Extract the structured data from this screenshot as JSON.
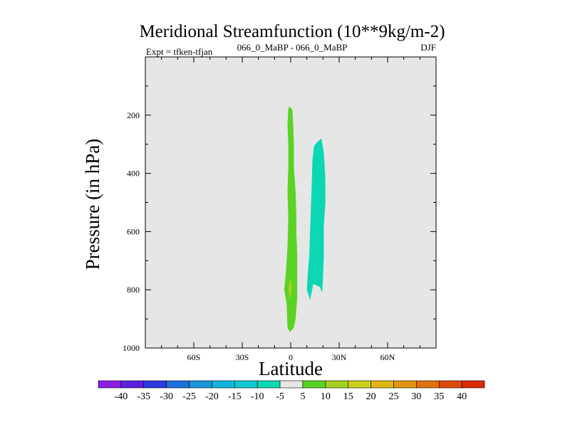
{
  "chart_data": {
    "type": "contour",
    "title": "Meridional Streamfunction (10**9kg/m-2)",
    "subtitle_left": "Expt = tfken-tfjan",
    "subtitle_center": "066_0_MaBP - 066_0_MaBP",
    "subtitle_right": "DJF",
    "xlabel": "Latitude",
    "ylabel": "Pressure (in hPa)",
    "xlim": [
      -90,
      90
    ],
    "ylim": [
      1000,
      0
    ],
    "x_ticks": [
      -60,
      -30,
      0,
      30,
      60
    ],
    "x_tick_labels": [
      "60S",
      "30S",
      "0",
      "30N",
      "60N"
    ],
    "y_ticks": [
      200,
      400,
      600,
      800,
      1000
    ],
    "y_tick_labels": [
      "200",
      "400",
      "600",
      "800",
      "1000"
    ],
    "background_color": "#e6e6e6",
    "regions": [
      {
        "name": "positive cell",
        "range": [
          5,
          10
        ],
        "color": "#5bd325",
        "polygon": [
          [
            -1,
            170
          ],
          [
            1,
            180
          ],
          [
            1.5,
            230
          ],
          [
            2,
            300
          ],
          [
            2,
            380
          ],
          [
            3,
            460
          ],
          [
            3.5,
            540
          ],
          [
            3.5,
            600
          ],
          [
            4,
            680
          ],
          [
            4,
            760
          ],
          [
            4,
            830
          ],
          [
            3,
            900
          ],
          [
            2,
            930
          ],
          [
            -0.5,
            945
          ],
          [
            -2,
            930
          ],
          [
            -2.5,
            850
          ],
          [
            -4,
            800
          ],
          [
            -3,
            740
          ],
          [
            -2,
            650
          ],
          [
            -1.5,
            560
          ],
          [
            -2,
            460
          ],
          [
            -1.5,
            380
          ],
          [
            -1.5,
            300
          ],
          [
            -2,
            230
          ],
          [
            -1.5,
            180
          ]
        ]
      },
      {
        "name": "positive cell core",
        "range": [
          10,
          15
        ],
        "color": "#a6d21f",
        "polygon": [
          [
            -0.5,
            760
          ],
          [
            0.5,
            780
          ],
          [
            0.5,
            820
          ],
          [
            -0.5,
            830
          ],
          [
            -1.5,
            800
          ]
        ]
      },
      {
        "name": "negative cell",
        "range": [
          -10,
          -5
        ],
        "color": "#0bd8b2",
        "polygon": [
          [
            19,
            280
          ],
          [
            20.5,
            330
          ],
          [
            21.5,
            420
          ],
          [
            21.5,
            500
          ],
          [
            20.5,
            580
          ],
          [
            20.5,
            680
          ],
          [
            20,
            760
          ],
          [
            19.5,
            810
          ],
          [
            18,
            790
          ],
          [
            14,
            780
          ],
          [
            12,
            835
          ],
          [
            10,
            800
          ],
          [
            10.5,
            750
          ],
          [
            11.5,
            680
          ],
          [
            12,
            600
          ],
          [
            12.5,
            520
          ],
          [
            13,
            440
          ],
          [
            13.5,
            350
          ],
          [
            14.5,
            305
          ],
          [
            16,
            295
          ]
        ]
      }
    ],
    "colorbar": {
      "levels": [
        -40,
        -35,
        -30,
        -25,
        -20,
        -15,
        -10,
        -5,
        5,
        10,
        15,
        20,
        25,
        30,
        35,
        40
      ],
      "level_labels": [
        "-40",
        "-35",
        "-30",
        "-25",
        "-20",
        "-15",
        "-10",
        "-5",
        "5",
        "10",
        "15",
        "20",
        "25",
        "30",
        "35",
        "40"
      ],
      "colors": [
        "#8c1fe0",
        "#5c1fe0",
        "#2b3ad9",
        "#1e6fdb",
        "#1a94db",
        "#16b4dc",
        "#10c8d0",
        "#0bd8b2",
        "#e6e6e6",
        "#5bd325",
        "#a6d21f",
        "#cdd01d",
        "#e0b715",
        "#e29510",
        "#e1700c",
        "#df4a08",
        "#dc2a04"
      ]
    }
  }
}
